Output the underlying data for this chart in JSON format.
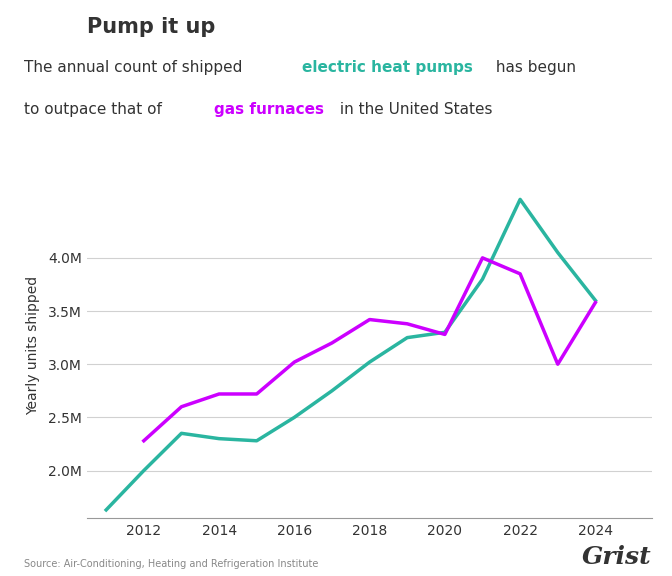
{
  "title": "Pump it up",
  "heat_pump_color": "#2ab5a0",
  "gas_furnace_color": "#cc00ff",
  "background_color": "#ffffff",
  "text_color": "#333333",
  "ylabel": "Yearly units shipped",
  "source": "Source: Air-Conditioning, Heating and Refrigeration Institute",
  "grist_text": "Grist",
  "heat_pumps_x": [
    2011,
    2012,
    2013,
    2014,
    2015,
    2016,
    2017,
    2018,
    2019,
    2020,
    2021,
    2022,
    2023,
    2024
  ],
  "heat_pumps_y": [
    1.63,
    2.0,
    2.35,
    2.3,
    2.28,
    2.5,
    2.75,
    3.02,
    3.25,
    3.3,
    3.8,
    4.55,
    4.05,
    3.6
  ],
  "gas_furnaces_x": [
    2012,
    2013,
    2014,
    2015,
    2016,
    2017,
    2018,
    2019,
    2020,
    2021,
    2022,
    2023,
    2024
  ],
  "gas_furnaces_y": [
    2.28,
    2.6,
    2.72,
    2.72,
    3.02,
    3.2,
    3.42,
    3.38,
    3.28,
    4.0,
    3.85,
    3.0,
    3.58
  ],
  "ylim": [
    1.55,
    4.8
  ],
  "yticks": [
    2.0,
    2.5,
    3.0,
    3.5,
    4.0
  ],
  "ytick_labels": [
    "2.0M",
    "2.5M",
    "3.0M",
    "3.5M",
    "4.0M"
  ],
  "xlim": [
    2010.5,
    2025.5
  ],
  "xticks": [
    2012,
    2014,
    2016,
    2018,
    2020,
    2022,
    2024
  ],
  "line_width": 2.5,
  "title_fontsize": 15,
  "subtitle_fontsize": 11,
  "tick_fontsize": 10,
  "ylabel_fontsize": 10
}
